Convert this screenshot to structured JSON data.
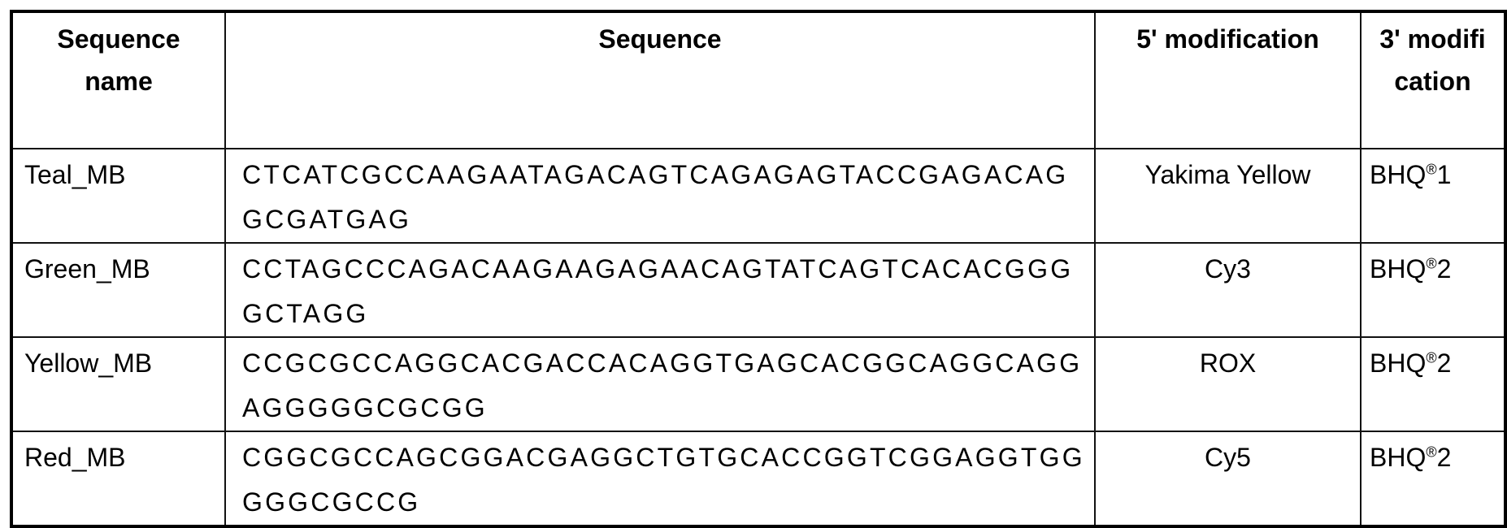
{
  "table": {
    "headers": [
      "Sequence name",
      "Sequence",
      "5' modification",
      "3' modifi cation"
    ],
    "rows": [
      {
        "name": "Teal_MB",
        "sequence": "CTCATCGCCAAGAATAGACAGTCAGAGAGTACCGAGACAGGCGATGAG",
        "mod5": "Yakima Yellow",
        "mod3_base": "BHQ",
        "mod3_sup": "®",
        "mod3_num": "1"
      },
      {
        "name": "Green_MB",
        "sequence": "CCTAGCCCAGACAAGAAGAGAACAGTATCAGTCACACGGGGCTAGG",
        "mod5": "Cy3",
        "mod3_base": "BHQ",
        "mod3_sup": "®",
        "mod3_num": "2"
      },
      {
        "name": "Yellow_MB",
        "sequence": "CCGCGCCAGGCACGACCACAGGTGAGCACGGCAGGCAGGAGGGGGCGCGG",
        "mod5": "ROX",
        "mod3_base": "BHQ",
        "mod3_sup": "®",
        "mod3_num": "2"
      },
      {
        "name": "Red_MB",
        "sequence": "CGGCGCCAGCGGACGAGGCTGTGCACCGGTCGGAGGTGGGGGCGCCG",
        "mod5": "Cy5",
        "mod3_base": "BHQ",
        "mod3_sup": "®",
        "mod3_num": "2"
      }
    ]
  }
}
